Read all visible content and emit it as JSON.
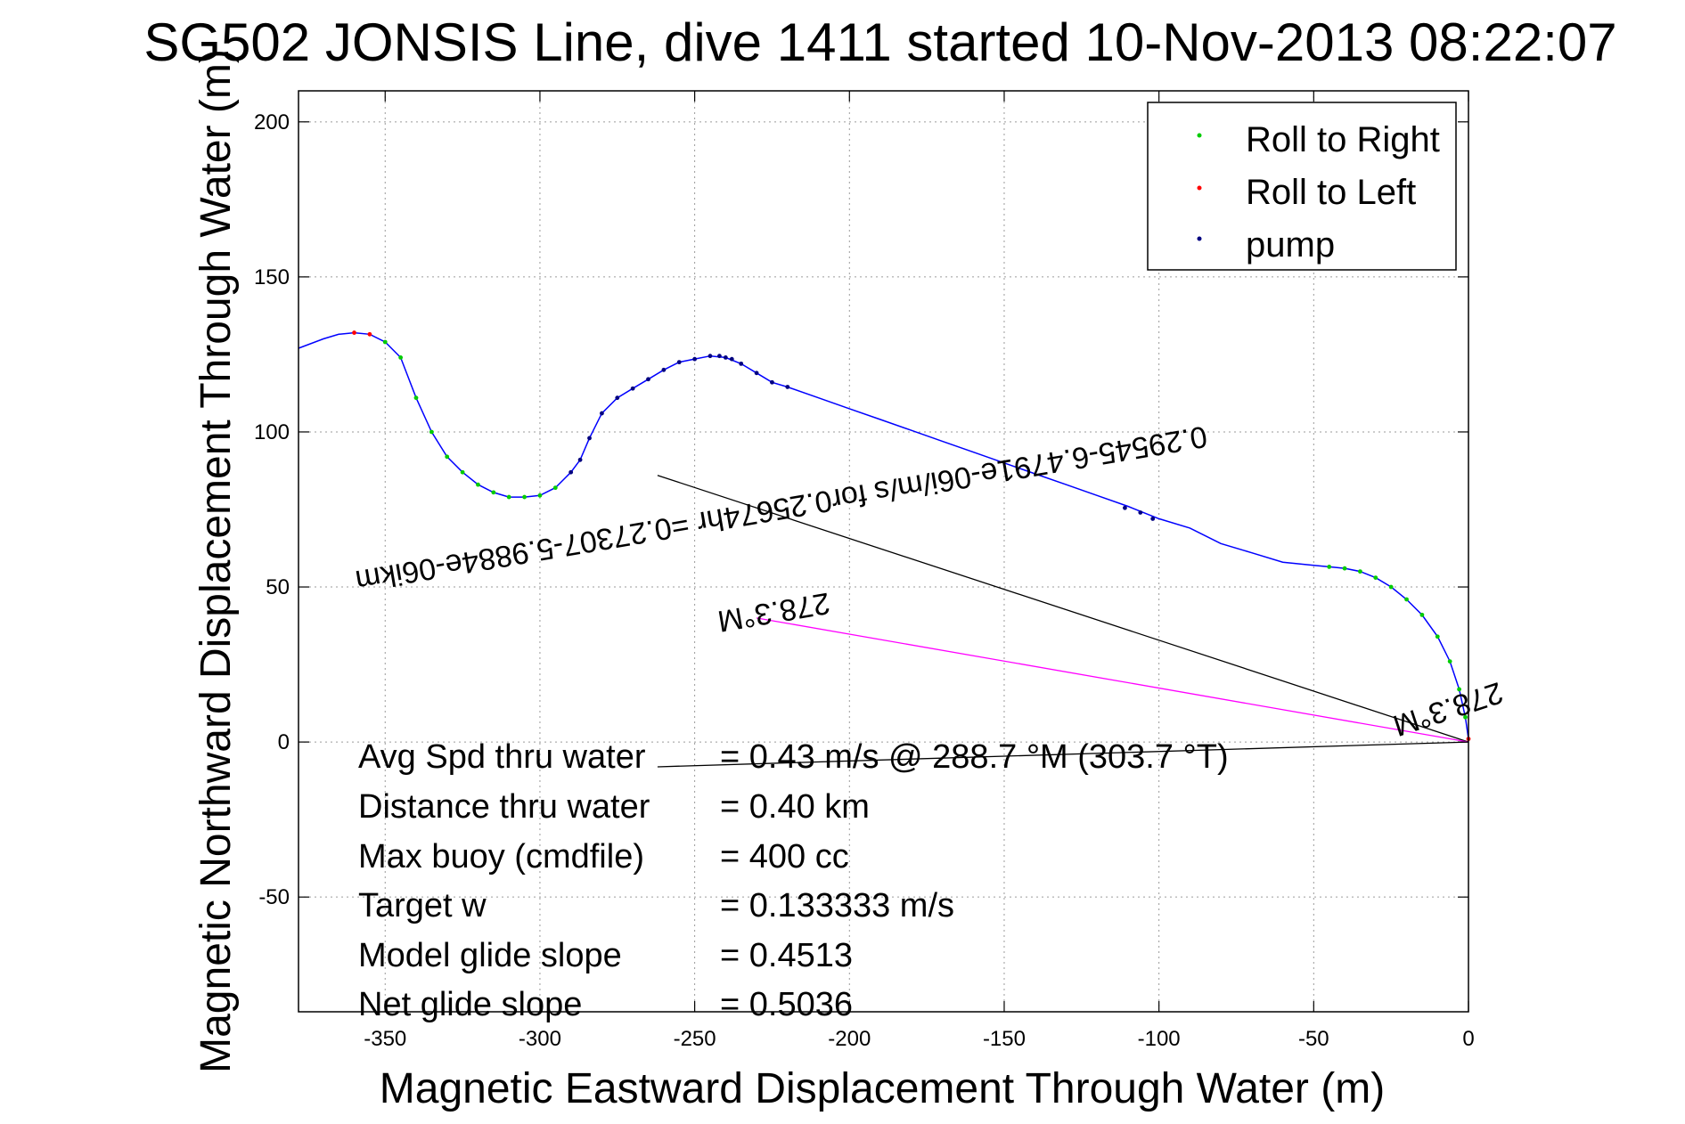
{
  "chart_data": {
    "type": "line",
    "title": "SG502 JONSIS Line, dive 1411 started 10-Nov-2013 08:22:07",
    "xlabel": "Magnetic Eastward Displacement Through Water (m)",
    "ylabel": "Magnetic Northward Displacement Through Water (m)",
    "xlim": [
      -378,
      0
    ],
    "ylim": [
      -87,
      210
    ],
    "xticks": [
      -350,
      -300,
      -250,
      -200,
      -150,
      -100,
      -50,
      0
    ],
    "yticks": [
      -50,
      0,
      50,
      100,
      150,
      200
    ],
    "xtick_labels": [
      "-350",
      "-300",
      "-250",
      "-200",
      "-150",
      "-100",
      "-50",
      "0"
    ],
    "ytick_labels": [
      "-50",
      "0",
      "50",
      "100",
      "150",
      "200"
    ],
    "grid": true,
    "legend_position": "top-right",
    "legend": [
      {
        "label": "Roll to Right",
        "color": "#00cc00"
      },
      {
        "label": "Roll to Left",
        "color": "#ff0000"
      },
      {
        "label": "pump",
        "color": "#000080"
      }
    ],
    "track": {
      "color": "#0000ff",
      "x": [
        0,
        -1,
        -3,
        -6,
        -10,
        -15,
        -20,
        -25,
        -30,
        -35,
        -40,
        -45,
        -50,
        -60,
        -70,
        -80,
        -90,
        -100,
        -110,
        -120,
        -130,
        -140,
        -150,
        -160,
        -170,
        -180,
        -190,
        -200,
        -210,
        -220,
        -225,
        -230,
        -235,
        -240,
        -245,
        -250,
        -255,
        -260,
        -265,
        -270,
        -275,
        -280,
        -284,
        -287,
        -290,
        -295,
        -300,
        -305,
        -310,
        -315,
        -320,
        -325,
        -330,
        -335,
        -340,
        -345,
        -350,
        -355,
        -360,
        -365,
        -370,
        -378
      ],
      "y": [
        1,
        8,
        17,
        26,
        34,
        41,
        46,
        50,
        53,
        55,
        56,
        56.5,
        57,
        58,
        61,
        64,
        69,
        72,
        76,
        79.5,
        83,
        86.5,
        90,
        93.5,
        97,
        100.5,
        104,
        107.5,
        111,
        114.5,
        116,
        119,
        122,
        124,
        124.5,
        123.5,
        122.5,
        120,
        117,
        114,
        111,
        106,
        98,
        91,
        87,
        82,
        79.5,
        79,
        79,
        80.5,
        83,
        87,
        92,
        100,
        111,
        124,
        129,
        131.5,
        132,
        131.5,
        130,
        127
      ]
    },
    "roll_right_points": {
      "x": [
        -1,
        -3,
        -6,
        -10,
        -15,
        -20,
        -25,
        -30,
        -35,
        -40,
        -45,
        -295,
        -300,
        -305,
        -310,
        -315,
        -320,
        -325,
        -330,
        -335,
        -340,
        -345,
        -350
      ],
      "y": [
        8,
        17,
        26,
        34,
        41,
        46,
        50,
        53,
        55,
        56,
        56.5,
        82,
        79.5,
        79,
        79,
        80.5,
        83,
        87,
        92,
        100,
        111,
        124,
        129
      ]
    },
    "roll_left_points": {
      "x": [
        0,
        -355,
        -360
      ],
      "y": [
        1,
        131.5,
        132
      ]
    },
    "pump_points": {
      "x": [
        -102,
        -106,
        -111,
        -220,
        -225,
        -230,
        -235,
        -238,
        -240,
        -242,
        -245,
        -250,
        -255,
        -260,
        -265,
        -270,
        -275,
        -280,
        -284,
        -287,
        -290
      ],
      "y": [
        72,
        74,
        75.5,
        114.5,
        116,
        119,
        122,
        123.5,
        124,
        124.5,
        124.5,
        123.5,
        122.5,
        120,
        117,
        114,
        111,
        106,
        98,
        91,
        87
      ]
    },
    "segments": [
      {
        "color": "#000000",
        "x": [
          0,
          -262
        ],
        "y": [
          0,
          86
        ]
      },
      {
        "color": "#000000",
        "x": [
          0,
          -262
        ],
        "y": [
          0,
          -8
        ]
      },
      {
        "color": "#ff00ff",
        "x": [
          0,
          -230
        ],
        "y": [
          0,
          40
        ]
      }
    ],
    "annotations": [
      {
        "text": "0.29545-6.4791e-06i/m/s for0.25674hr =0.27307-5.9884e-06ikm",
        "x": -360,
        "y": 55,
        "angle_deg": 170.3
      },
      {
        "text": "278.3°M",
        "x": -243,
        "y": 42,
        "angle_deg": 170.3
      },
      {
        "text": "278.3°M",
        "x": -25,
        "y": 8,
        "angle_deg": 161.8
      }
    ],
    "stats": [
      {
        "label": "Avg Spd thru water",
        "value": "=  0.43 m/s @ 288.7 °M (303.7 °T)"
      },
      {
        "label": "Distance thru water",
        "value": "=  0.40 km"
      },
      {
        "label": "Max buoy (cmdfile)",
        "value": "= 400 cc"
      },
      {
        "label": "Target w",
        "value": "= 0.133333 m/s"
      },
      {
        "label": "Model glide slope",
        "value": "= 0.4513"
      },
      {
        "label": "Net glide slope",
        "value": "= 0.5036"
      }
    ]
  }
}
